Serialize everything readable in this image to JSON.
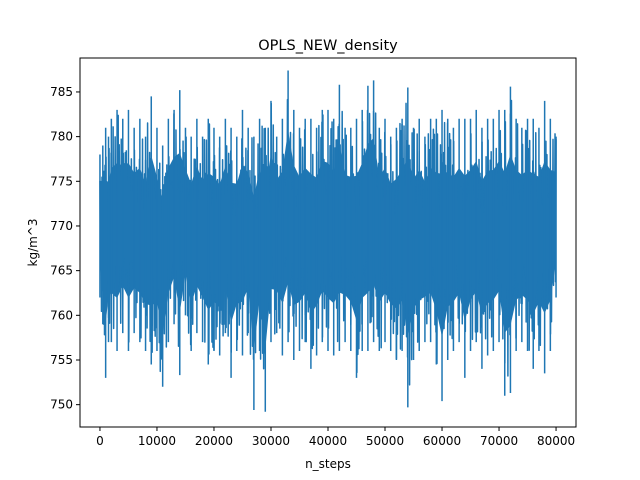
{
  "chart_data": {
    "type": "line",
    "title": "OPLS_NEW_density",
    "xlabel": "n_steps",
    "ylabel": "kg/m^3",
    "xlim": [
      -3500,
      83500
    ],
    "ylim": [
      747.5,
      788.8
    ],
    "xticks": [
      {
        "value": 0,
        "label": "0"
      },
      {
        "value": 10000,
        "label": "10000"
      },
      {
        "value": 20000,
        "label": "20000"
      },
      {
        "value": 30000,
        "label": "30000"
      },
      {
        "value": 40000,
        "label": "40000"
      },
      {
        "value": 50000,
        "label": "50000"
      },
      {
        "value": 60000,
        "label": "60000"
      },
      {
        "value": 70000,
        "label": "70000"
      },
      {
        "value": 80000,
        "label": "80000"
      }
    ],
    "yticks": [
      {
        "value": 750,
        "label": "750"
      },
      {
        "value": 755,
        "label": "755"
      },
      {
        "value": 760,
        "label": "760"
      },
      {
        "value": 765,
        "label": "765"
      },
      {
        "value": 770,
        "label": "770"
      },
      {
        "value": 775,
        "label": "775"
      },
      {
        "value": 780,
        "label": "780"
      },
      {
        "value": 785,
        "label": "785"
      }
    ],
    "grid": false,
    "legend": "none",
    "series": [
      {
        "color": "#1f77b4",
        "x": [
          0,
          500,
          1000,
          1500,
          2000,
          3000,
          4000,
          5000,
          6000,
          7000,
          8000,
          9000,
          10000,
          11000,
          12000,
          13000,
          14000,
          15000,
          16000,
          17000,
          18000,
          19000,
          20000,
          21000,
          22000,
          23000,
          24000,
          25000,
          26000,
          27000,
          28000,
          29000,
          30000,
          31000,
          32000,
          33000,
          34000,
          35000,
          36000,
          37000,
          38000,
          39000,
          40000,
          41000,
          42000,
          43000,
          44000,
          45000,
          46000,
          47000,
          48000,
          49000,
          50000,
          51000,
          52000,
          53000,
          54000,
          55000,
          56000,
          57000,
          58000,
          59000,
          60000,
          61000,
          62000,
          63000,
          64000,
          65000,
          66000,
          67000,
          68000,
          69000,
          70000,
          71000,
          72000,
          73000,
          74000,
          75000,
          76000,
          77000,
          78000,
          79000,
          80000
        ],
        "upper": [
          778,
          779,
          781,
          780,
          782,
          783,
          782,
          783,
          781,
          782,
          780,
          784.5,
          781,
          779,
          782,
          783,
          785.2,
          781,
          780,
          782,
          780,
          782,
          781,
          780,
          782,
          781,
          780,
          783,
          781,
          780,
          782,
          781,
          784,
          780,
          782,
          787.4,
          783,
          781,
          782,
          782,
          781,
          783,
          783,
          782,
          785.8,
          781,
          781,
          782,
          783,
          785.7,
          786.3,
          781,
          782,
          780,
          781,
          782,
          785.5,
          781,
          782,
          780,
          782,
          782,
          783,
          782,
          781,
          782,
          782,
          782,
          783,
          781,
          782,
          782,
          783,
          783,
          785.6,
          782,
          781,
          782,
          782,
          781,
          784,
          782,
          780
        ],
        "lower": [
          762,
          759,
          753,
          757,
          757,
          756,
          758,
          756,
          758,
          757,
          756,
          754.5,
          756,
          752,
          757,
          759,
          753.3,
          760,
          756,
          758,
          757,
          754.5,
          756,
          755.5,
          758,
          753,
          756,
          755.5,
          758,
          749.4,
          756,
          749.2,
          757,
          758,
          755.5,
          757,
          755,
          756,
          757,
          754,
          755.5,
          757,
          756,
          755.5,
          756,
          757,
          756,
          753,
          756,
          756,
          757,
          756,
          757,
          756,
          755,
          756,
          749.7,
          755,
          756,
          757,
          757,
          754.5,
          750.4,
          755,
          756,
          757,
          753,
          756,
          757,
          754,
          755.5,
          756,
          757,
          751,
          751.3,
          756,
          757,
          756,
          754,
          756,
          753.5,
          756,
          762
        ]
      }
    ]
  }
}
